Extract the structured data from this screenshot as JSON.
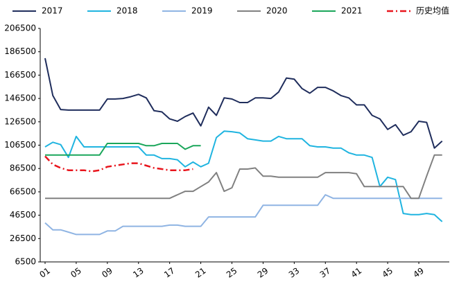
{
  "chart_data": {
    "type": "line",
    "categories": [
      "01",
      null,
      null,
      null,
      "05",
      null,
      null,
      null,
      "09",
      null,
      null,
      null,
      "13",
      null,
      null,
      null,
      "17",
      null,
      null,
      null,
      "21",
      null,
      null,
      null,
      "25",
      null,
      null,
      null,
      "29",
      null,
      null,
      null,
      "33",
      null,
      null,
      null,
      "37",
      null,
      null,
      null,
      "41",
      null,
      null,
      null,
      "45",
      null,
      null,
      null,
      "49",
      null,
      null,
      null
    ],
    "ylim": [
      6500,
      206500
    ],
    "yticks": [
      6500,
      26500,
      46500,
      66500,
      86500,
      106500,
      126500,
      146500,
      166500,
      186500,
      206500
    ],
    "grid": false,
    "legend": "top",
    "series": [
      {
        "name": "2017",
        "color": "#1f2d5c",
        "values": [
          181000,
          149000,
          137000,
          136500,
          136500,
          136500,
          136500,
          136500,
          146000,
          146000,
          146500,
          148000,
          150000,
          147000,
          136000,
          135000,
          129000,
          127000,
          131000,
          134000,
          123000,
          139000,
          132000,
          147000,
          146000,
          143000,
          143000,
          147000,
          147000,
          146500,
          152000,
          164000,
          163000,
          155000,
          151000,
          156000,
          156000,
          153000,
          149000,
          147000,
          141000,
          141000,
          132000,
          129000,
          120000,
          124000,
          115000,
          118000,
          127000,
          126000,
          104000,
          110000
        ]
      },
      {
        "name": "2018",
        "color": "#1fb4e0",
        "values": [
          105000,
          109000,
          107000,
          96000,
          114000,
          105000,
          105000,
          105000,
          105000,
          105000,
          105000,
          105000,
          105000,
          98000,
          98000,
          95000,
          95000,
          94000,
          88000,
          92000,
          88000,
          91000,
          113000,
          118500,
          118000,
          117000,
          112000,
          111000,
          110000,
          110000,
          114000,
          112000,
          112000,
          112000,
          106000,
          105000,
          105000,
          104000,
          104000,
          100000,
          98000,
          98000,
          96000,
          71000,
          79000,
          77000,
          48000,
          47000,
          47000,
          48000,
          47000,
          41000
        ]
      },
      {
        "name": "2019",
        "color": "#8fb4e3",
        "values": [
          40000,
          34000,
          34000,
          32000,
          30000,
          30000,
          30000,
          30000,
          33000,
          33000,
          37000,
          37000,
          37000,
          37000,
          37000,
          37000,
          38000,
          38000,
          37000,
          37000,
          37000,
          45000,
          45000,
          45000,
          45000,
          45000,
          45000,
          45000,
          55000,
          55000,
          55000,
          55000,
          55000,
          55000,
          55000,
          55000,
          64000,
          61000,
          61000,
          61000,
          61000,
          61000,
          61000,
          61000,
          61000,
          61000,
          61000,
          61000,
          61000,
          61000,
          61000,
          61000
        ]
      },
      {
        "name": "2020",
        "color": "#808080",
        "values": [
          61000,
          61000,
          61000,
          61000,
          61000,
          61000,
          61000,
          61000,
          61000,
          61000,
          61000,
          61000,
          61000,
          61000,
          61000,
          61000,
          61000,
          64000,
          67000,
          67000,
          71000,
          75000,
          83000,
          67000,
          70000,
          86000,
          86000,
          87000,
          80000,
          80000,
          79000,
          79000,
          79000,
          79000,
          79000,
          79000,
          83000,
          83000,
          83000,
          83000,
          82000,
          71000,
          71000,
          71000,
          71000,
          71000,
          71000,
          61000,
          61000,
          80000,
          98000,
          98000
        ]
      },
      {
        "name": "2021",
        "color": "#1aa65a",
        "values": [
          98000,
          98000,
          98000,
          98000,
          98000,
          98000,
          98000,
          98000,
          108000,
          108000,
          108000,
          108000,
          108000,
          106000,
          106000,
          108000,
          108000,
          108000,
          103000,
          106000,
          106000,
          null,
          null,
          null,
          null,
          null,
          null,
          null,
          null,
          null,
          null,
          null,
          null,
          null,
          null,
          null,
          null,
          null,
          null,
          null,
          null,
          null,
          null,
          null,
          null,
          null,
          null,
          null,
          null,
          null,
          null,
          null
        ]
      },
      {
        "name": "历史均值",
        "color": "#e8141c",
        "dash": "dashdot",
        "values": [
          97000,
          90000,
          87000,
          85000,
          85000,
          85000,
          84000,
          85000,
          88000,
          89000,
          90000,
          91000,
          91000,
          89000,
          87000,
          86000,
          85000,
          85000,
          85000,
          86000,
          null,
          null,
          null,
          null,
          null,
          null,
          null,
          null,
          null,
          null,
          null,
          null,
          null,
          null,
          null,
          null,
          null,
          null,
          null,
          null,
          null,
          null,
          null,
          null,
          null,
          null,
          null,
          null,
          null,
          null,
          null,
          null
        ]
      }
    ]
  }
}
